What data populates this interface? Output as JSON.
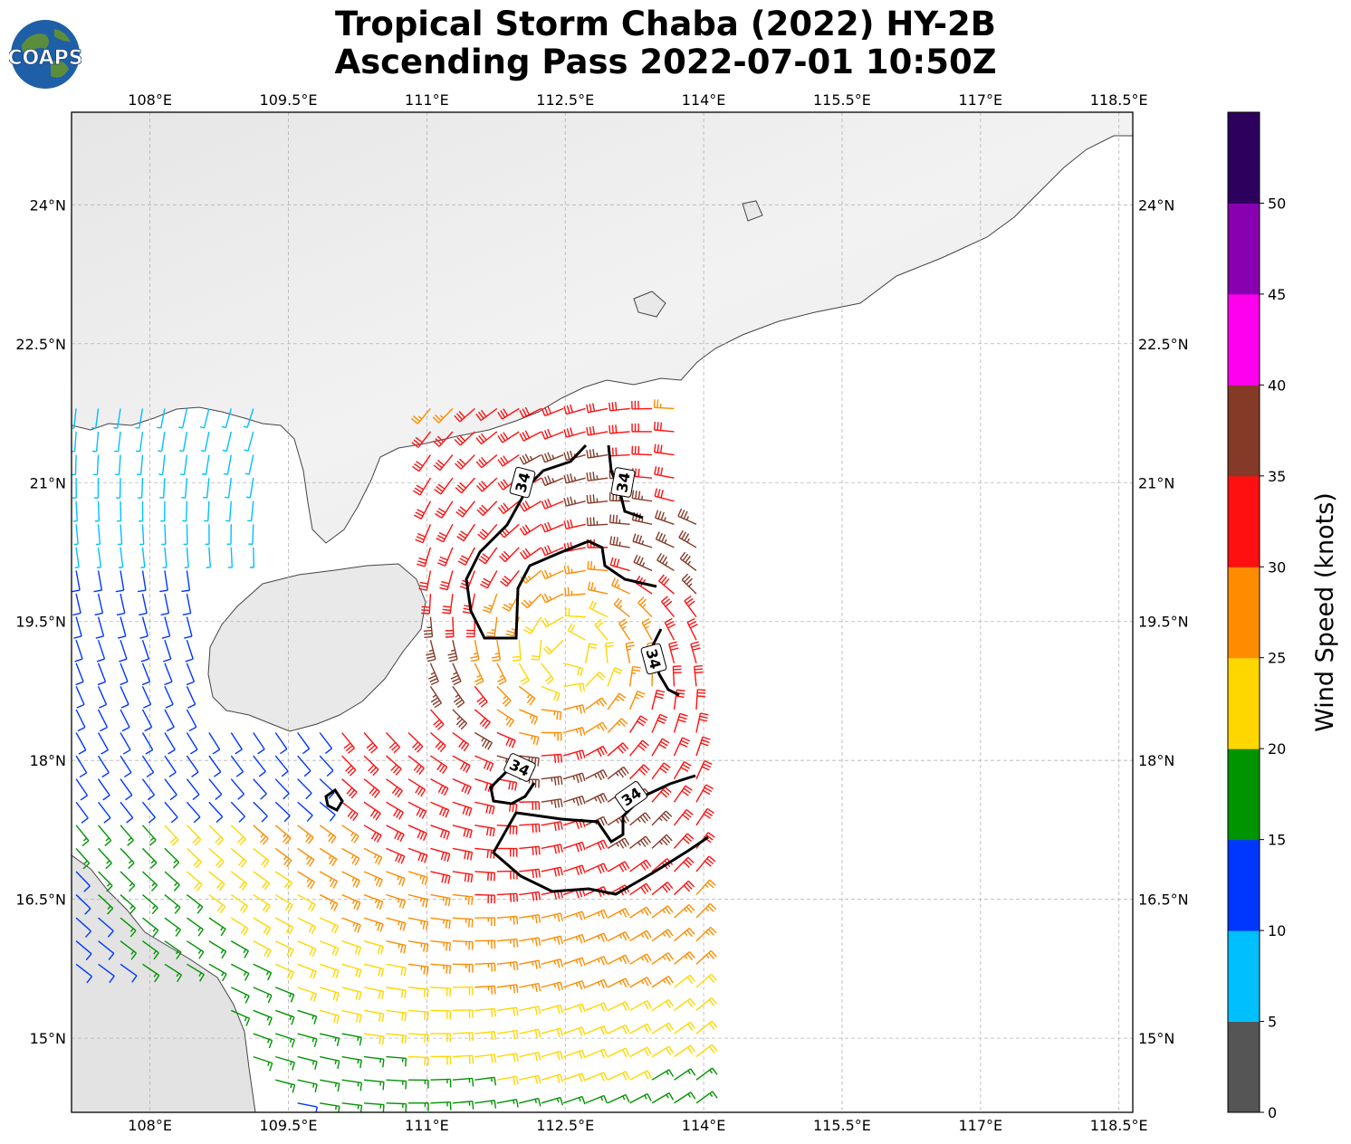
{
  "title": {
    "line1": "Tropical Storm Chaba (2022) HY-2B",
    "line2": "Ascending Pass 2022-07-01 10:50Z"
  },
  "logo": {
    "text": "COAPS"
  },
  "map": {
    "lon_range": [
      107.15,
      118.65
    ],
    "lat_range": [
      14.2,
      25.0
    ],
    "lon_ticks": [
      "108°E",
      "109.5°E",
      "111°E",
      "112.5°E",
      "114°E",
      "115.5°E",
      "117°E",
      "118.5°E"
    ],
    "lat_ticks": [
      "24°N",
      "22.5°N",
      "21°N",
      "19.5°N",
      "18°N",
      "16.5°N",
      "15°N"
    ],
    "storm_center": {
      "lon": 112.55,
      "lat": 19.15
    },
    "contour_label": "34",
    "colors": {
      "land": "#eeeeee",
      "coast": "#444444",
      "contour": "#000000",
      "grid": "#b4b4b4"
    }
  },
  "colorbar": {
    "label": "Wind Speed (knots)",
    "ticks": [
      "0",
      "5",
      "10",
      "15",
      "20",
      "25",
      "30",
      "35",
      "40",
      "45",
      "50"
    ],
    "bins": [
      {
        "min": 0,
        "color": "#555555"
      },
      {
        "min": 5,
        "color": "#00bfff"
      },
      {
        "min": 10,
        "color": "#0037ff"
      },
      {
        "min": 15,
        "color": "#009400"
      },
      {
        "min": 20,
        "color": "#ffd700"
      },
      {
        "min": 25,
        "color": "#ff8c00"
      },
      {
        "min": 30,
        "color": "#ff1010"
      },
      {
        "min": 35,
        "color": "#853a28"
      },
      {
        "min": 40,
        "color": "#ff00ee"
      },
      {
        "min": 45,
        "color": "#8800b0"
      },
      {
        "min": 50,
        "color": "#2e005e"
      }
    ]
  }
}
